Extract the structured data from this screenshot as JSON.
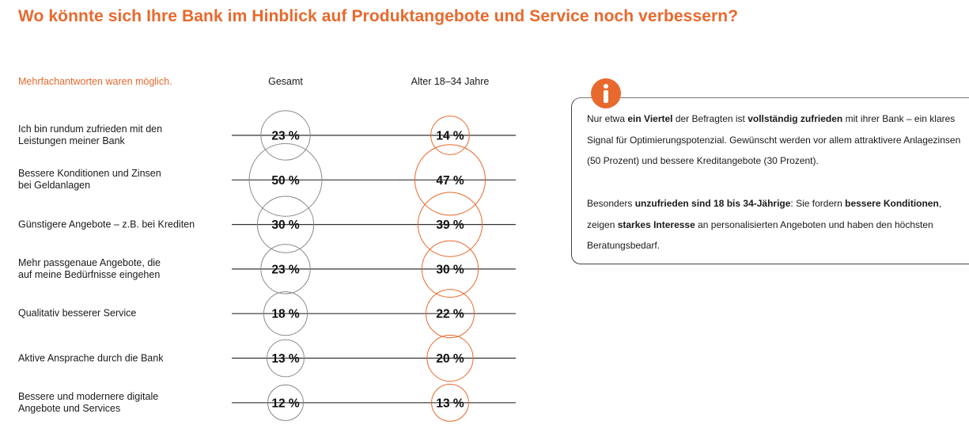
{
  "title": "Wo könnte sich Ihre Bank im Hinblick auf Produktangebote und Service noch verbessern?",
  "note": "Mehrfachantworten waren möglich.",
  "colors": {
    "accent": "#e8692d",
    "gesamt_stroke": "#8a8a8a",
    "alter_stroke": "#e8692d",
    "line": "#333333"
  },
  "chart_data": {
    "type": "bubble-table",
    "title": "Wo könnte sich Ihre Bank im Hinblick auf Produktangebote und Service noch verbessern?",
    "subtitle": "Mehrfachantworten waren möglich.",
    "unit": "%",
    "categories": [
      "Ich bin rundum zufrieden mit den\nLeistungen meiner Bank",
      "Bessere Konditionen und Zinsen\nbei Geldanlagen",
      "Günstigere Angebote – z.B. bei Krediten",
      "Mehr passgenaue Angebote, die\nauf meine Bedürfnisse eingehen",
      "Qualitativ besserer Service",
      "Aktive Ansprache durch die Bank",
      "Bessere und modernere digitale\nAngebote und Services"
    ],
    "series": [
      {
        "name": "Gesamt",
        "values": [
          23,
          50,
          30,
          23,
          18,
          13,
          12
        ]
      },
      {
        "name": "Alter 18–34 Jahre",
        "values": [
          14,
          47,
          39,
          30,
          22,
          20,
          13
        ]
      }
    ]
  },
  "info": {
    "icon": "info-icon",
    "paragraphs": [
      [
        {
          "t": "Nur etwa ",
          "b": false
        },
        {
          "t": "ein Viertel",
          "b": true
        },
        {
          "t": " der Befragten ist ",
          "b": false
        },
        {
          "t": "vollständig zufrieden",
          "b": true
        },
        {
          "t": " mit ihrer Bank – ein klares Signal für Optimierungspotenzial. Gewünscht werden vor allem attraktivere Anlagezinsen (50 Prozent) und bessere Kreditangebote (30 Prozent).",
          "b": false
        }
      ],
      [
        {
          "t": "Besonders ",
          "b": false
        },
        {
          "t": "unzufrieden sind 18 bis 34-Jährige",
          "b": true
        },
        {
          "t": ": Sie fordern ",
          "b": false
        },
        {
          "t": "bessere Konditionen",
          "b": true
        },
        {
          "t": ", zeigen ",
          "b": false
        },
        {
          "t": "starkes Interesse",
          "b": true
        },
        {
          "t": " an personalisierten Angeboten und haben den höchsten Beratungsbedarf.",
          "b": false
        }
      ]
    ]
  }
}
